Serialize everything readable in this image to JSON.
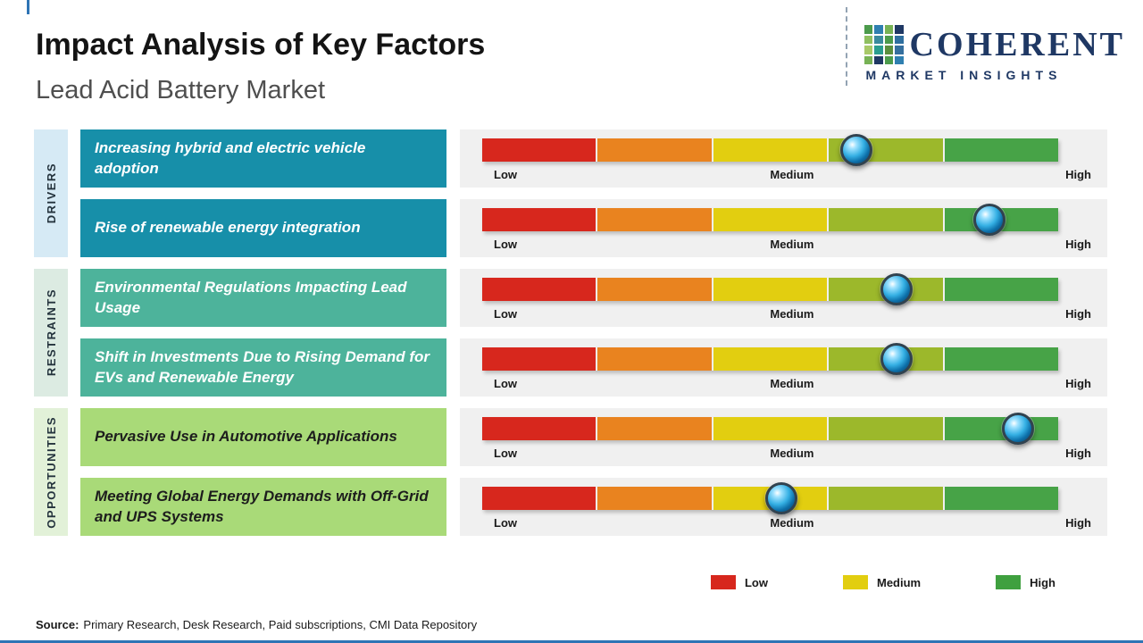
{
  "page": {
    "title": "Impact Analysis of Key Factors",
    "subtitle": "Lead Acid Battery Market",
    "source_prefix": "Source:",
    "source_text": "Primary Research, Desk Research, Paid subscriptions, CMI Data Repository",
    "accent_color": "#2e74b5"
  },
  "logo": {
    "word": "COHERENT",
    "tagline": "MARKET INSIGHTS",
    "color": "#1f3864",
    "mosaic_colors": [
      "#4c9b4c",
      "#2f7fb0",
      "#77b255",
      "#1f3864",
      "#8fbf60",
      "#3a8a9e",
      "#4c9b4c",
      "#2f6f9f",
      "#a8c968",
      "#2a9d8f",
      "#5b8f3e",
      "#356f9e",
      "#77b255",
      "#1f3864",
      "#4c9b4c",
      "#2f7fb0"
    ]
  },
  "scale": {
    "low": "Low",
    "medium": "Medium",
    "high": "High"
  },
  "categories": [
    {
      "label": "DRIVERS",
      "strip_color": "#d6eaf5",
      "box_color": "#178fa9",
      "text_color": "#ffffff"
    },
    {
      "label": "RESTRAINTS",
      "strip_color": "#dcebe2",
      "box_color": "#4db39b",
      "text_color": "#ffffff"
    },
    {
      "label": "OPPORTUNITIES",
      "strip_color": "#e2f1d8",
      "box_color": "#a9da78",
      "text_color": "#1d1d1d"
    }
  ],
  "rows": [
    {
      "category": "DRIVERS",
      "factor": "Increasing hybrid and electric vehicle adoption",
      "position": 0.65
    },
    {
      "category": "DRIVERS",
      "factor": "Rise of renewable energy integration",
      "position": 0.88
    },
    {
      "category": "RESTRAINTS",
      "factor": "Environmental Regulations Impacting Lead Usage",
      "position": 0.72
    },
    {
      "category": "RESTRAINTS",
      "factor": "Shift in Investments Due to Rising Demand for EVs and Renewable Energy",
      "position": 0.72
    },
    {
      "category": "OPPORTUNITIES",
      "factor": "Pervasive Use in Automotive Applications",
      "position": 0.93
    },
    {
      "category": "OPPORTUNITIES",
      "factor": "Meeting Global Energy Demands with Off-Grid and UPS Systems",
      "position": 0.52
    }
  ],
  "bar": {
    "segment_colors": [
      "#d7271d",
      "#e9831f",
      "#e2ce10",
      "#9cb82b",
      "#47a347"
    ]
  },
  "legend": [
    {
      "label": "Low",
      "color": "#d7271d"
    },
    {
      "label": "Medium",
      "color": "#e2ce10"
    },
    {
      "label": "High",
      "color": "#3fa03f"
    }
  ],
  "chart_data": {
    "type": "bar",
    "title": "Impact Analysis of Key Factors",
    "subtitle": "Lead Acid Battery Market",
    "scale_labels": [
      "Low",
      "Medium",
      "High"
    ],
    "scale_range": [
      0,
      1
    ],
    "groups": [
      "Drivers",
      "Drivers",
      "Restraints",
      "Restraints",
      "Opportunities",
      "Opportunities"
    ],
    "categories": [
      "Increasing hybrid and electric vehicle adoption",
      "Rise of renewable energy integration",
      "Environmental Regulations Impacting Lead Usage",
      "Shift in Investments Due to Rising Demand for EVs and Renewable Energy",
      "Pervasive Use in Automotive Applications",
      "Meeting Global Energy Demands with Off-Grid and UPS Systems"
    ],
    "values": [
      0.65,
      0.88,
      0.72,
      0.72,
      0.93,
      0.52
    ],
    "value_note": "marker position on Low(0) to High(1) impact scale",
    "legend_entries": [
      "Low",
      "Medium",
      "High"
    ],
    "legend_position": "bottom-right"
  }
}
